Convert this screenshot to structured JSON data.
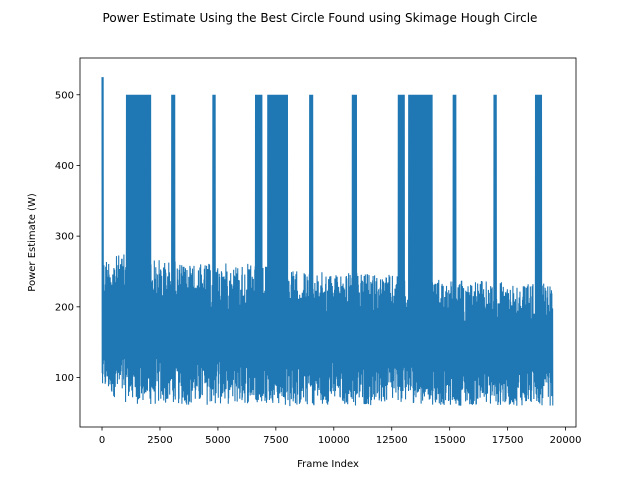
{
  "chart_data": {
    "type": "line",
    "title": "Power Estimate Using the Best Circle Found using Skimage Hough Circle",
    "xlabel": "Frame Index",
    "ylabel": "Power Estimate (W)",
    "xlim": [
      -950,
      20450
    ],
    "ylim": [
      30,
      552
    ],
    "xticks": [
      0,
      2500,
      5000,
      7500,
      10000,
      12500,
      15000,
      17500,
      20000
    ],
    "xtick_labels": [
      "0",
      "2500",
      "5000",
      "7500",
      "10000",
      "12500",
      "15000",
      "17500",
      "20000"
    ],
    "yticks": [
      100,
      200,
      300,
      400,
      500
    ],
    "ytick_labels": [
      "100",
      "200",
      "300",
      "400",
      "500"
    ],
    "grid": false,
    "line_color": "#1f77b4",
    "series": [
      {
        "name": "",
        "x_range": [
          0,
          19450
        ],
        "low_envelope": [
          [
            0,
            80
          ],
          [
            1000,
            65
          ],
          [
            2000,
            60
          ],
          [
            3000,
            62
          ],
          [
            4000,
            60
          ],
          [
            5000,
            62
          ],
          [
            6000,
            62
          ],
          [
            7000,
            65
          ],
          [
            8000,
            58
          ],
          [
            9000,
            60
          ],
          [
            10000,
            62
          ],
          [
            11000,
            60
          ],
          [
            12000,
            60
          ],
          [
            13000,
            65
          ],
          [
            14000,
            62
          ],
          [
            15000,
            60
          ],
          [
            16000,
            60
          ],
          [
            17000,
            60
          ],
          [
            18000,
            60
          ],
          [
            19450,
            60
          ]
        ],
        "high_envelope": [
          [
            0,
            270
          ],
          [
            1000,
            275
          ],
          [
            2000,
            270
          ],
          [
            3000,
            265
          ],
          [
            4000,
            260
          ],
          [
            5000,
            262
          ],
          [
            6000,
            262
          ],
          [
            7000,
            258
          ],
          [
            8000,
            252
          ],
          [
            9000,
            250
          ],
          [
            10000,
            248
          ],
          [
            11000,
            248
          ],
          [
            12000,
            246
          ],
          [
            13000,
            244
          ],
          [
            14000,
            242
          ],
          [
            15000,
            240
          ],
          [
            16000,
            238
          ],
          [
            17000,
            236
          ],
          [
            18000,
            235
          ],
          [
            19450,
            232
          ]
        ],
        "spike_value": 525,
        "spike_x": [
          0,
          60
        ],
        "saturation_value": 500,
        "saturated_regions": [
          [
            1050,
            2100
          ],
          [
            3000,
            3150
          ],
          [
            4780,
            4880
          ],
          [
            6620,
            6900
          ],
          [
            7150,
            8000
          ],
          [
            8960,
            9100
          ],
          [
            10800,
            10980
          ],
          [
            12780,
            13050
          ],
          [
            13230,
            14250
          ],
          [
            15150,
            15270
          ],
          [
            16900,
            17020
          ],
          [
            18700,
            18970
          ]
        ]
      }
    ]
  }
}
